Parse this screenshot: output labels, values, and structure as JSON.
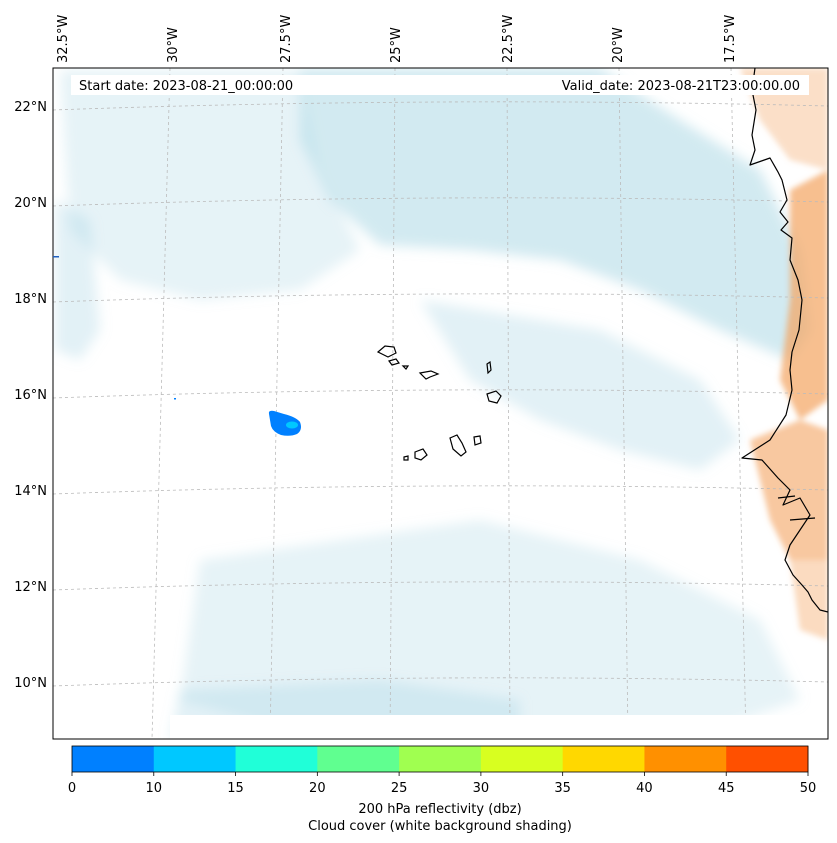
{
  "header": {
    "start_date": "Start date: 2023-08-21_00:00:00",
    "valid_date": "Valid_date: 2023-08-21T23:00:00.00"
  },
  "longitude_labels": [
    "32.5°W",
    "30°W",
    "27.5°W",
    "25°W",
    "22.5°W",
    "20°W",
    "17.5°W"
  ],
  "latitude_labels": [
    "22°N",
    "20°N",
    "18°N",
    "16°N",
    "14°N",
    "12°N",
    "10°N"
  ],
  "colorbar": {
    "ticks": [
      "0",
      "10",
      "15",
      "20",
      "25",
      "30",
      "35",
      "40",
      "45",
      "50"
    ],
    "colors": [
      "#0080ff",
      "#00c8ff",
      "#20ffd8",
      "#60ff90",
      "#a0ff50",
      "#d8ff20",
      "#ffd800",
      "#ff9000",
      "#ff5000"
    ],
    "label_line1": "200 hPa reflectivity (dbz)",
    "label_line2": "Cloud cover (white background shading)"
  },
  "colors": {
    "cloud": "#add8e6",
    "land_warm": "#f4a460",
    "echo": "#0080ff",
    "coast": "#000000"
  }
}
